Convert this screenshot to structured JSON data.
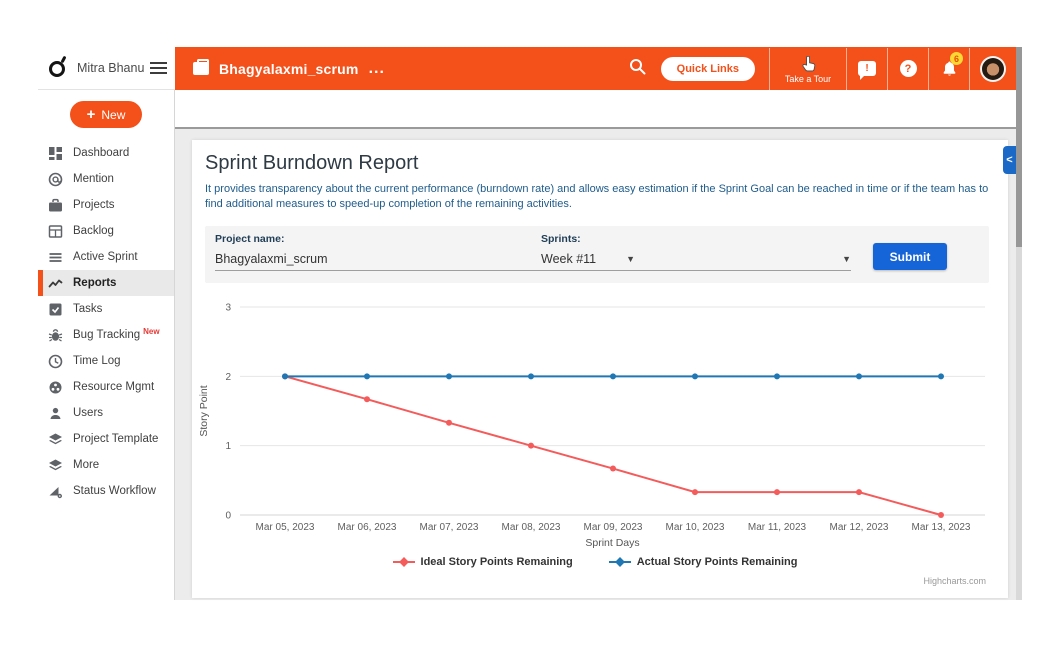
{
  "brand": {
    "name": "Mitra Bhanu"
  },
  "header": {
    "project": {
      "title": "Bhagyalaxmi_scrum",
      "more": "..."
    },
    "quick_links_label": "Quick Links",
    "take_a_tour_label": "Take a Tour",
    "chat_glyph": "!",
    "help_glyph": "?",
    "notifications": {
      "count": "6"
    }
  },
  "sidebar": {
    "new_button_label": "New",
    "new_button_plus": "+",
    "items": [
      {
        "label": "Dashboard"
      },
      {
        "label": "Mention"
      },
      {
        "label": "Projects"
      },
      {
        "label": "Backlog"
      },
      {
        "label": "Active Sprint"
      },
      {
        "label": "Reports",
        "active": true
      },
      {
        "label": "Tasks"
      },
      {
        "label": "Bug Tracking",
        "badge": "New"
      },
      {
        "label": "Time Log"
      },
      {
        "label": "Resource Mgmt"
      },
      {
        "label": "Users"
      },
      {
        "label": "Project Template"
      },
      {
        "label": "More"
      },
      {
        "label": "Status Workflow"
      }
    ]
  },
  "report": {
    "title": "Sprint Burndown Report",
    "description": "It provides transparency about the current performance (burndown rate) and allows easy estimation if the Sprint Goal can be reached in time or if the team has to find additional measures to speed-up completion of the remaining activities."
  },
  "filters": {
    "project_label": "Project name:",
    "project_value": "Bhagyalaxmi_scrum",
    "sprints_label": "Sprints:",
    "sprints_value": "Week #11",
    "submit_label": "Submit",
    "caret": "▼"
  },
  "chart_data": {
    "type": "line",
    "title": "",
    "x": [
      "Mar 05, 2023",
      "Mar 06, 2023",
      "Mar 07, 2023",
      "Mar 08, 2023",
      "Mar 09, 2023",
      "Mar 10, 2023",
      "Mar 11, 2023",
      "Mar 12, 2023",
      "Mar 13, 2023"
    ],
    "series": [
      {
        "name": "Ideal Story Points Remaining",
        "color": "#f45b5b",
        "values": [
          2,
          1.67,
          1.33,
          1,
          0.67,
          0.33,
          0.33,
          0.33,
          0
        ]
      },
      {
        "name": "Actual Story Points Remaining",
        "color": "#1f78b4",
        "values": [
          2,
          2,
          2,
          2,
          2,
          2,
          2,
          2,
          2
        ]
      }
    ],
    "xlabel": "Sprint Days",
    "ylabel": "Story Point",
    "ylim": [
      0,
      3
    ],
    "yticks": [
      0,
      1,
      2,
      3
    ],
    "grid": true,
    "legend_position": "bottom"
  },
  "credits": "Highcharts.com",
  "misc": {
    "collapse_glyph": "<"
  },
  "colors": {
    "accent_orange": "#f4501a",
    "submit_blue": "#1565d8",
    "ideal_red": "#f45b5b",
    "actual_blue": "#1f78b4",
    "badge_yellow": "#fdd835"
  }
}
